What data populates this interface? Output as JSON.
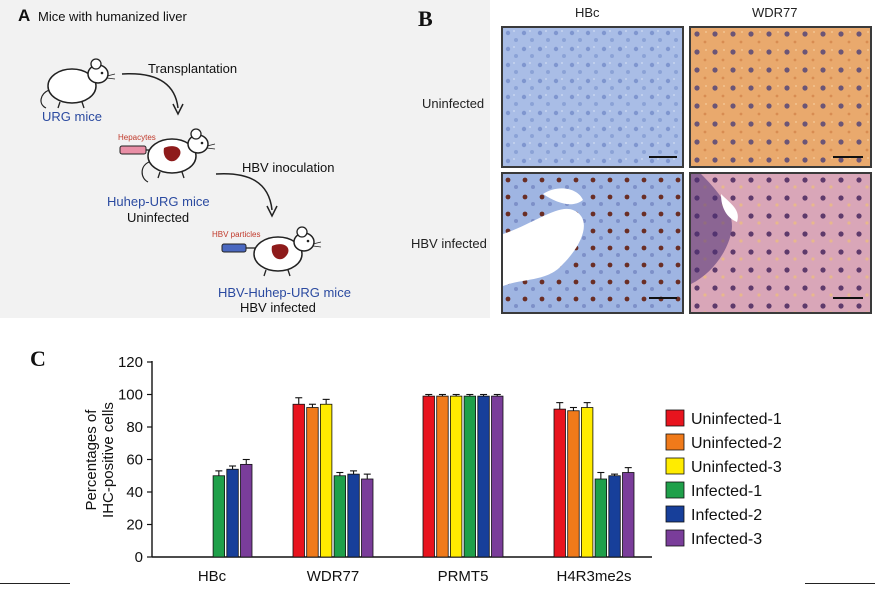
{
  "panelA": {
    "letter": "A",
    "title": "Mice with humanized liver",
    "step1_arrow": "Transplantation",
    "mouse1": "URG mice",
    "inject1": "Hepacytes",
    "mouse2_name": "Huhep-URG mice",
    "mouse2_state": "Uninfected",
    "step2_arrow": "HBV inoculation",
    "inject2": "HBV particles",
    "mouse3_name": "HBV-Huhep-URG mice",
    "mouse3_state": "HBV infected"
  },
  "panelB": {
    "letter": "B",
    "columns": [
      "HBc",
      "WDR77"
    ],
    "rows": [
      "Uninfected",
      "HBV infected"
    ]
  },
  "panelC": {
    "letter": "C"
  },
  "colors": {
    "Uninfected-1": "#e8141e",
    "Uninfected-2": "#f07a1a",
    "Uninfected-3": "#ffec00",
    "Infected-1": "#1fa04a",
    "Infected-2": "#173f9a",
    "Infected-3": "#7a3d9a"
  },
  "chart_data": {
    "type": "bar",
    "ylabel": "Percentages of IHC-positive cells",
    "ylim": [
      0,
      120
    ],
    "yticks": [
      0,
      20,
      40,
      60,
      80,
      100,
      120
    ],
    "categories": [
      "HBc",
      "WDR77",
      "PRMT5",
      "H4R3me2s"
    ],
    "legend_position": "right",
    "series": [
      {
        "name": "Uninfected-1",
        "values": [
          0,
          94,
          99,
          91
        ],
        "errors": [
          0,
          4,
          1,
          4
        ]
      },
      {
        "name": "Uninfected-2",
        "values": [
          0,
          92,
          99,
          90
        ],
        "errors": [
          0,
          2,
          1,
          2
        ]
      },
      {
        "name": "Uninfected-3",
        "values": [
          0,
          94,
          99,
          92
        ],
        "errors": [
          0,
          3,
          1,
          3
        ]
      },
      {
        "name": "Infected-1",
        "values": [
          50,
          50,
          99,
          48
        ],
        "errors": [
          3,
          2,
          1,
          4
        ]
      },
      {
        "name": "Infected-2",
        "values": [
          54,
          51,
          99,
          50
        ],
        "errors": [
          2,
          2,
          1,
          1
        ]
      },
      {
        "name": "Infected-3",
        "values": [
          57,
          48,
          99,
          52
        ],
        "errors": [
          3,
          3,
          1,
          3
        ]
      }
    ]
  }
}
